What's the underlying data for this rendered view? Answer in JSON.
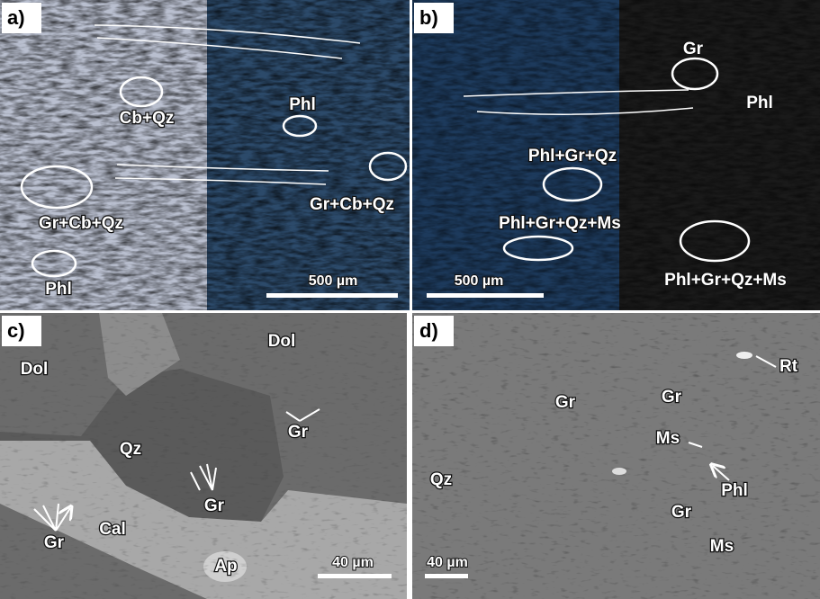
{
  "panels": [
    {
      "label": "a)",
      "scale_bar": "500 µm",
      "annotations": [
        "Cb+Qz",
        "Phl",
        "Gr+Cb+Qz",
        "Gr+Cb+Qz",
        "Phl"
      ]
    },
    {
      "label": "b)",
      "scale_bar": "500 µm",
      "annotations": [
        "Gr",
        "Phl",
        "Phl+Gr+Qz",
        "Phl+Gr+Qz+Ms",
        "Phl+Gr+Qz+Ms"
      ]
    },
    {
      "label": "c)",
      "scale_bar": "40 µm",
      "annotations": [
        "Dol",
        "Dol",
        "Qz",
        "Gr",
        "Gr",
        "Gr",
        "Cal",
        "Ap"
      ]
    },
    {
      "label": "d)",
      "scale_bar": "40 µm",
      "annotations": [
        "Gr",
        "Gr",
        "Rt",
        "Ms",
        "Phl",
        "Qz",
        "Gr",
        "Ms"
      ]
    }
  ]
}
